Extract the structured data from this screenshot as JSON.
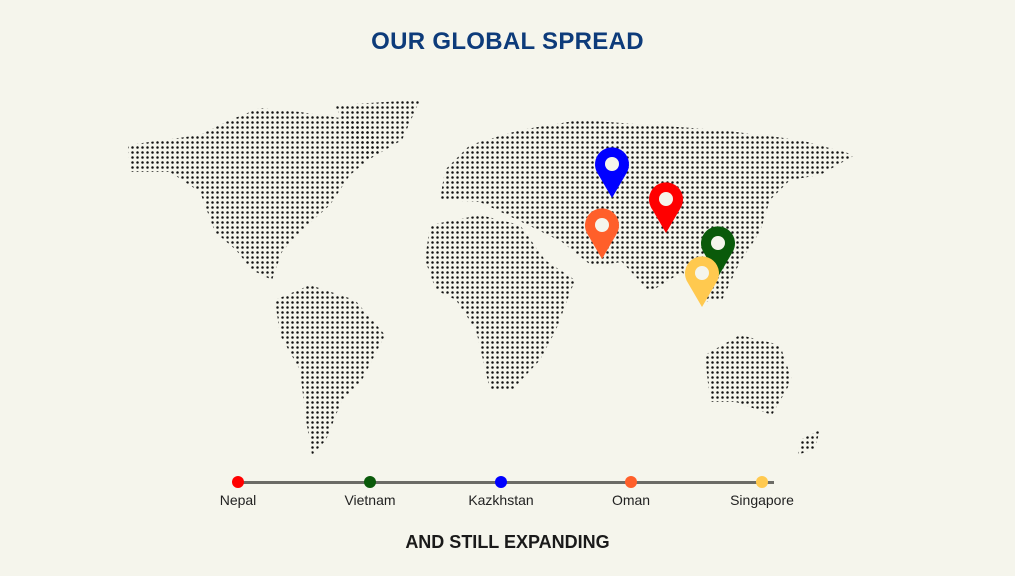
{
  "title": "OUR GLOBAL SPREAD",
  "footer": "AND STILL EXPANDING",
  "locations": [
    {
      "name": "Nepal",
      "color": "#ff0000"
    },
    {
      "name": "Vietnam",
      "color": "#0a5a0a"
    },
    {
      "name": "Kazkhstan",
      "color": "#0000ff"
    },
    {
      "name": "Oman",
      "color": "#ff5f2a"
    },
    {
      "name": "Singapore",
      "color": "#ffc94f"
    }
  ],
  "map": {
    "land_pattern": "dotted",
    "dot_color": "#111111",
    "background": "#f5f5ec"
  }
}
